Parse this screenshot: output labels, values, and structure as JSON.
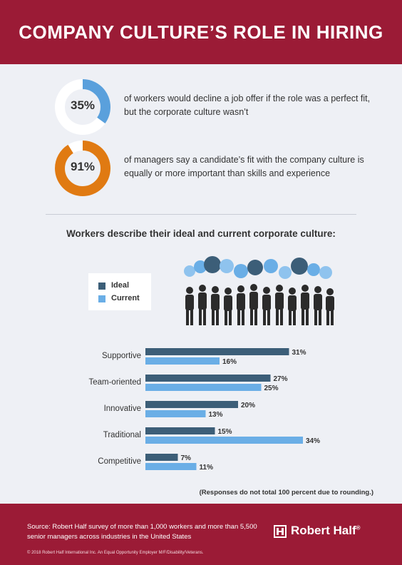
{
  "header": {
    "title": "COMPANY CULTURE’S ROLE IN HIRING"
  },
  "stats": [
    {
      "value": "35%",
      "fraction": 0.35,
      "color": "#5aa0dc",
      "text": "of workers would decline a job offer if the role was a perfect fit, but the corporate culture wasn’t"
    },
    {
      "value": "91%",
      "fraction": 0.91,
      "color": "#e07a12",
      "text": "of managers say a candidate’s fit with the company culture is equally or more important than skills and experience"
    }
  ],
  "chart_heading": "Workers describe their ideal and current corporate culture:",
  "chart_data": {
    "type": "bar",
    "orientation": "horizontal",
    "categories": [
      "Supportive",
      "Team-oriented",
      "Innovative",
      "Traditional",
      "Competitive"
    ],
    "series": [
      {
        "name": "Ideal",
        "values": [
          31,
          27,
          20,
          15,
          7
        ],
        "labels": [
          "31%",
          "27%",
          "20%",
          "15%",
          "7%"
        ],
        "color": "#3c5e78"
      },
      {
        "name": "Current",
        "values": [
          16,
          25,
          13,
          34,
          11
        ],
        "labels": [
          "16%",
          "25%",
          "13%",
          "34%",
          "11%"
        ],
        "color": "#6aaee6"
      }
    ],
    "legend_position": "top-left",
    "grid": false
  },
  "note": "(Responses do not total 100 percent due to rounding.)",
  "footer": {
    "source": "Source: Robert Half survey of more than 1,000 workers and more than 5,500 senior managers across industries in the United States",
    "copyright": "© 2018 Robert Half International Inc. An Equal Opportunity Employer M/F/Disability/Veterans.",
    "brand": "Robert Half",
    "brand_mark": "®",
    "logo_icon": "robert-half-logo-icon"
  },
  "colors": {
    "brand_red": "#9b1b36",
    "background": "#eef0f5",
    "ideal": "#3c5e78",
    "current": "#6aaee6",
    "bubble_light": "#8fc3ee",
    "bubble_dark": "#3c5e78",
    "silhouette": "#2b2b2b"
  }
}
